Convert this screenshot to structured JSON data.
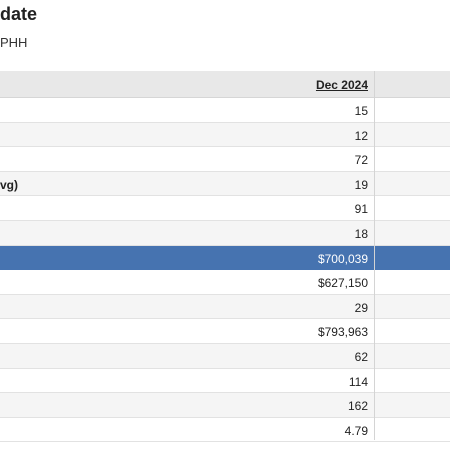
{
  "header": {
    "title_fragment": "date",
    "subtitle_fragment": "PHH"
  },
  "table": {
    "column_header": "Dec 2024",
    "rows": [
      {
        "label": "",
        "value": "15"
      },
      {
        "label": "",
        "value": "12"
      },
      {
        "label": "",
        "value": "72"
      },
      {
        "label": "vg)",
        "value": "19"
      },
      {
        "label": "",
        "value": "91"
      },
      {
        "label": "",
        "value": "18"
      },
      {
        "label": "",
        "value": "$700,039",
        "selected": true
      },
      {
        "label": "",
        "value": "$627,150"
      },
      {
        "label": "",
        "value": "29"
      },
      {
        "label": "",
        "value": "$793,963"
      },
      {
        "label": "",
        "value": "62"
      },
      {
        "label": "",
        "value": "114"
      },
      {
        "label": "",
        "value": "162"
      },
      {
        "label": "",
        "value": "4.79"
      }
    ]
  },
  "colors": {
    "selected_row": "#4673b0",
    "header_bg": "#e8e8e8",
    "alt_row": "#f5f5f5"
  }
}
